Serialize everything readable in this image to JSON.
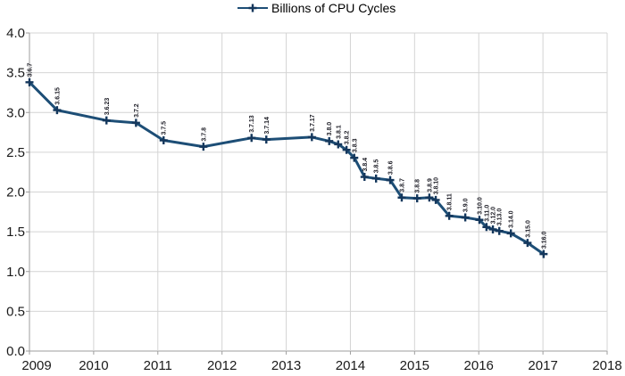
{
  "chart_data": {
    "type": "line",
    "title": "",
    "xlabel": "",
    "ylabel": "",
    "legend": {
      "label": "Billions of CPU Cycles",
      "position": "top-center"
    },
    "xlim": [
      2009,
      2018
    ],
    "ylim": [
      0.0,
      4.0
    ],
    "grid": true,
    "x_tick_labels": [
      "2009",
      "2010",
      "2011",
      "2012",
      "2013",
      "2014",
      "2015",
      "2016",
      "2017",
      "2018"
    ],
    "y_tick_labels": [
      "0.0",
      "0.5",
      "1.0",
      "1.5",
      "2.0",
      "2.5",
      "3.0",
      "3.5",
      "4.0"
    ],
    "colors": {
      "series_line": "#1d4e76",
      "marker": "#14375c",
      "gridline": "#d4d4d4",
      "axis": "#9e9e9e",
      "tick_text": "#1a1a1a",
      "point_label_text": "#1b1b24",
      "background": "#ffffff"
    },
    "series": [
      {
        "name": "Billions of CPU Cycles",
        "marker": "plus",
        "points": [
          {
            "label": "3.6.7",
            "x": 2009.0,
            "y": 3.38
          },
          {
            "label": "3.6.15",
            "x": 2009.43,
            "y": 3.03
          },
          {
            "label": "3.6.23",
            "x": 2010.2,
            "y": 2.9
          },
          {
            "label": "3.7.2",
            "x": 2010.66,
            "y": 2.87
          },
          {
            "label": "3.7.5",
            "x": 2011.09,
            "y": 2.65
          },
          {
            "label": "3.7.8",
            "x": 2011.71,
            "y": 2.57
          },
          {
            "label": "3.7.13",
            "x": 2012.46,
            "y": 2.68
          },
          {
            "label": "3.7.14",
            "x": 2012.69,
            "y": 2.66
          },
          {
            "label": "3.7.17",
            "x": 2013.4,
            "y": 2.69
          },
          {
            "label": "3.8.0",
            "x": 2013.67,
            "y": 2.64
          },
          {
            "label": "3.8.1",
            "x": 2013.81,
            "y": 2.6
          },
          {
            "label": "3.8.2",
            "x": 2013.94,
            "y": 2.53
          },
          {
            "label": "3.8.3",
            "x": 2014.06,
            "y": 2.43
          },
          {
            "label": "3.8.4",
            "x": 2014.22,
            "y": 2.19
          },
          {
            "label": "3.8.5",
            "x": 2014.4,
            "y": 2.17
          },
          {
            "label": "3.8.6",
            "x": 2014.62,
            "y": 2.15
          },
          {
            "label": "3.8.7",
            "x": 2014.8,
            "y": 1.93
          },
          {
            "label": "3.8.8",
            "x": 2015.04,
            "y": 1.92
          },
          {
            "label": "3.8.9",
            "x": 2015.23,
            "y": 1.93
          },
          {
            "label": "3.8.10",
            "x": 2015.33,
            "y": 1.9
          },
          {
            "label": "3.8.11",
            "x": 2015.54,
            "y": 1.7
          },
          {
            "label": "3.9.0",
            "x": 2015.79,
            "y": 1.68
          },
          {
            "label": "3.10.0",
            "x": 2016.01,
            "y": 1.65
          },
          {
            "label": "3.11.0",
            "x": 2016.12,
            "y": 1.56
          },
          {
            "label": "3.12.0",
            "x": 2016.22,
            "y": 1.53
          },
          {
            "label": "3.13.0",
            "x": 2016.32,
            "y": 1.51
          },
          {
            "label": "3.14.0",
            "x": 2016.5,
            "y": 1.48
          },
          {
            "label": "3.15.0",
            "x": 2016.76,
            "y": 1.36
          },
          {
            "label": "3.16.0",
            "x": 2017.01,
            "y": 1.22
          }
        ]
      }
    ]
  }
}
